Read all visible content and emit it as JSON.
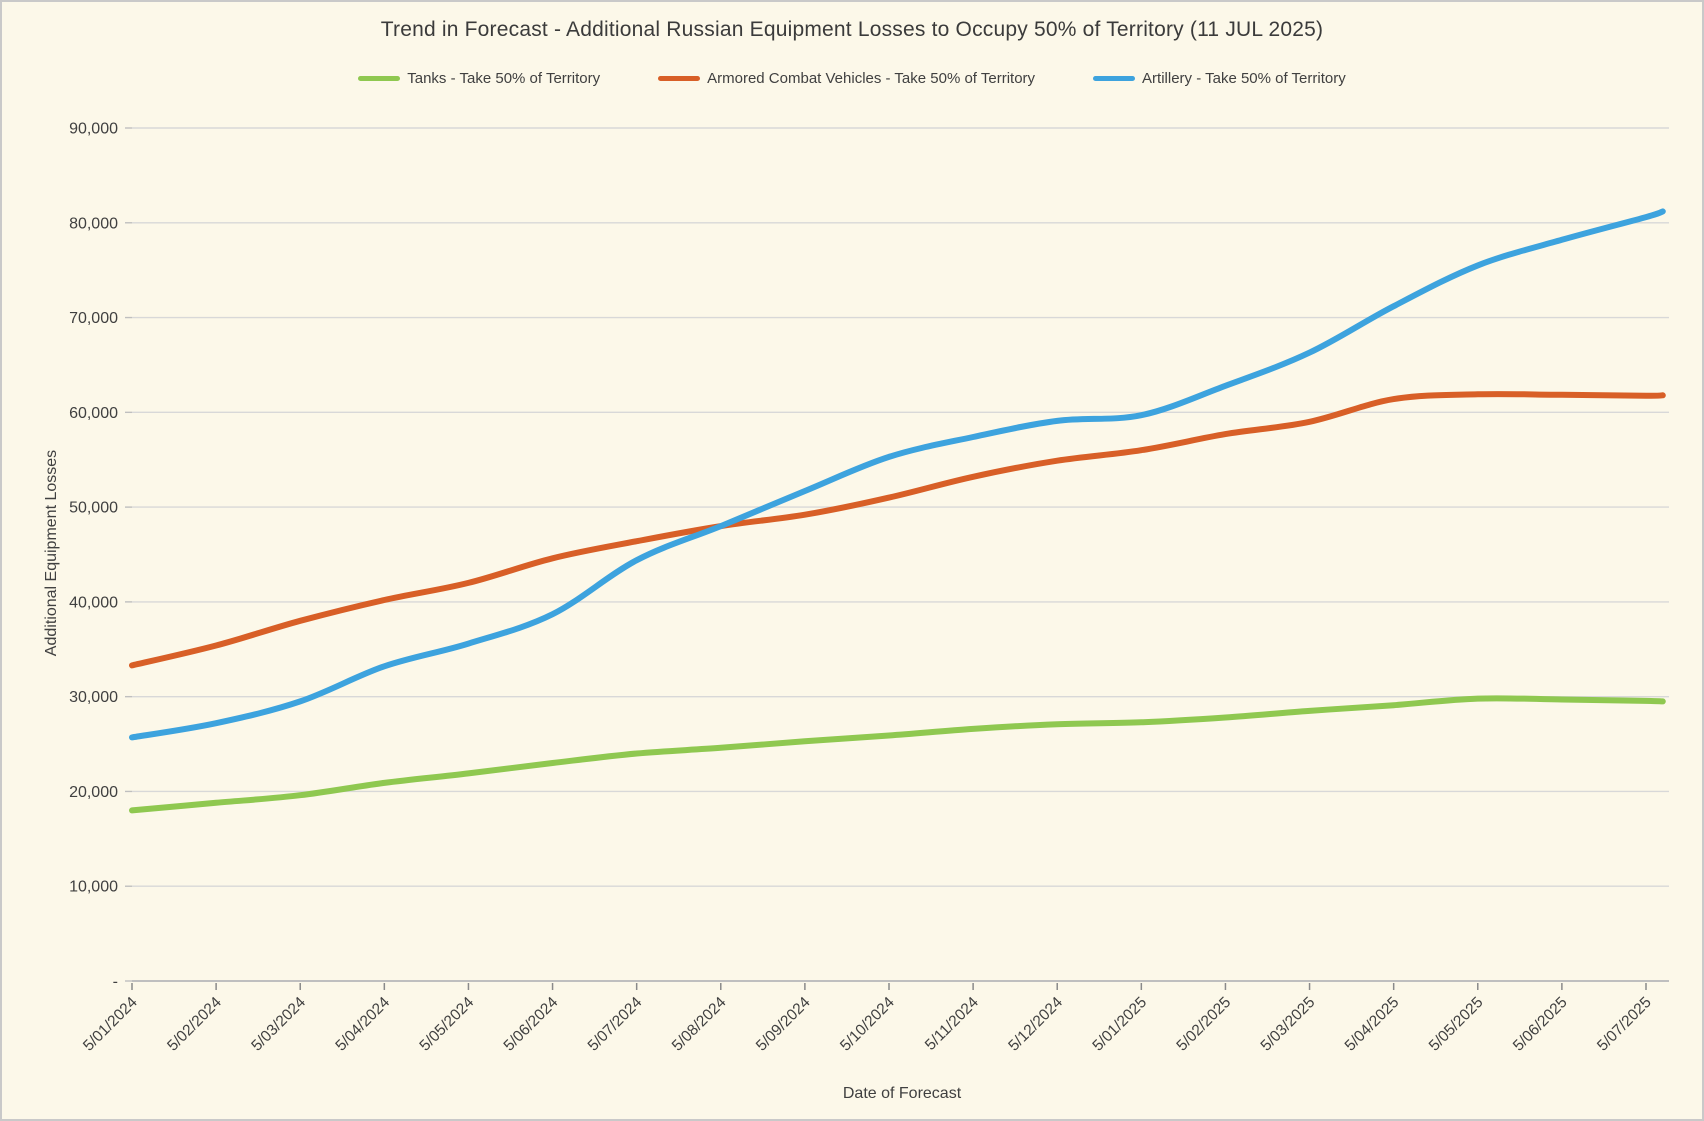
{
  "chart_data": {
    "type": "line",
    "title": "Trend in Forecast - Additional Russian Equipment Losses to Occupy 50% of Territory (11 JUL 2025)",
    "xlabel": "Date of Forecast",
    "ylabel": "Additional Equipment Losses",
    "ylim": [
      0,
      90000
    ],
    "ytick_step": 10000,
    "ytick_labels": [
      "-",
      "10,000",
      "20,000",
      "30,000",
      "40,000",
      "50,000",
      "60,000",
      "70,000",
      "80,000",
      "90,000"
    ],
    "x_tick_labels": [
      "5/01/2024",
      "5/02/2024",
      "5/03/2024",
      "5/04/2024",
      "5/05/2024",
      "5/06/2024",
      "5/07/2024",
      "5/08/2024",
      "5/09/2024",
      "5/10/2024",
      "5/11/2024",
      "5/12/2024",
      "5/01/2025",
      "5/02/2025",
      "5/03/2025",
      "5/04/2025",
      "5/05/2025",
      "5/06/2025",
      "5/07/2025"
    ],
    "grid": true,
    "legend_position": "top",
    "background_color": "#FCF8E9",
    "gridline_color": "#D8D8D8",
    "axis_line_color": "#BFBFBF",
    "text_color": "#404040",
    "series": [
      {
        "name": "Tanks - Take 50% of Territory",
        "color": "#8FC850",
        "t": [
          0,
          1,
          2,
          3,
          4,
          5,
          6,
          7,
          8,
          9,
          10,
          11,
          12,
          13,
          14,
          15,
          16,
          17,
          18,
          18.2
        ],
        "values": [
          18000,
          18800,
          19600,
          20900,
          21900,
          23000,
          24000,
          24600,
          25300,
          25900,
          26600,
          27100,
          27300,
          27800,
          28500,
          29100,
          29800,
          29700,
          29550,
          29500
        ]
      },
      {
        "name": "Armored Combat Vehicles - Take 50% of Territory",
        "color": "#D85F27",
        "t": [
          0,
          1,
          2,
          3,
          4,
          5,
          6,
          7,
          8,
          9,
          10,
          11,
          12,
          13,
          14,
          15,
          16,
          17,
          18,
          18.2
        ],
        "values": [
          33300,
          35400,
          38000,
          40200,
          42000,
          44600,
          46400,
          48000,
          49200,
          51000,
          53200,
          54900,
          56000,
          57700,
          59000,
          61400,
          61900,
          61850,
          61750,
          61800
        ]
      },
      {
        "name": "Artillery - Take 50% of Territory",
        "color": "#3DA3DE",
        "t": [
          0,
          1,
          2,
          3,
          4,
          5,
          6,
          7,
          8,
          9,
          10,
          11,
          12,
          13,
          14,
          15,
          16,
          17,
          18,
          18.2
        ],
        "values": [
          25700,
          27200,
          29500,
          33200,
          35600,
          38700,
          44400,
          48000,
          51700,
          55300,
          57400,
          59100,
          59700,
          62800,
          66300,
          71200,
          75500,
          78200,
          80600,
          81200
        ]
      }
    ]
  }
}
